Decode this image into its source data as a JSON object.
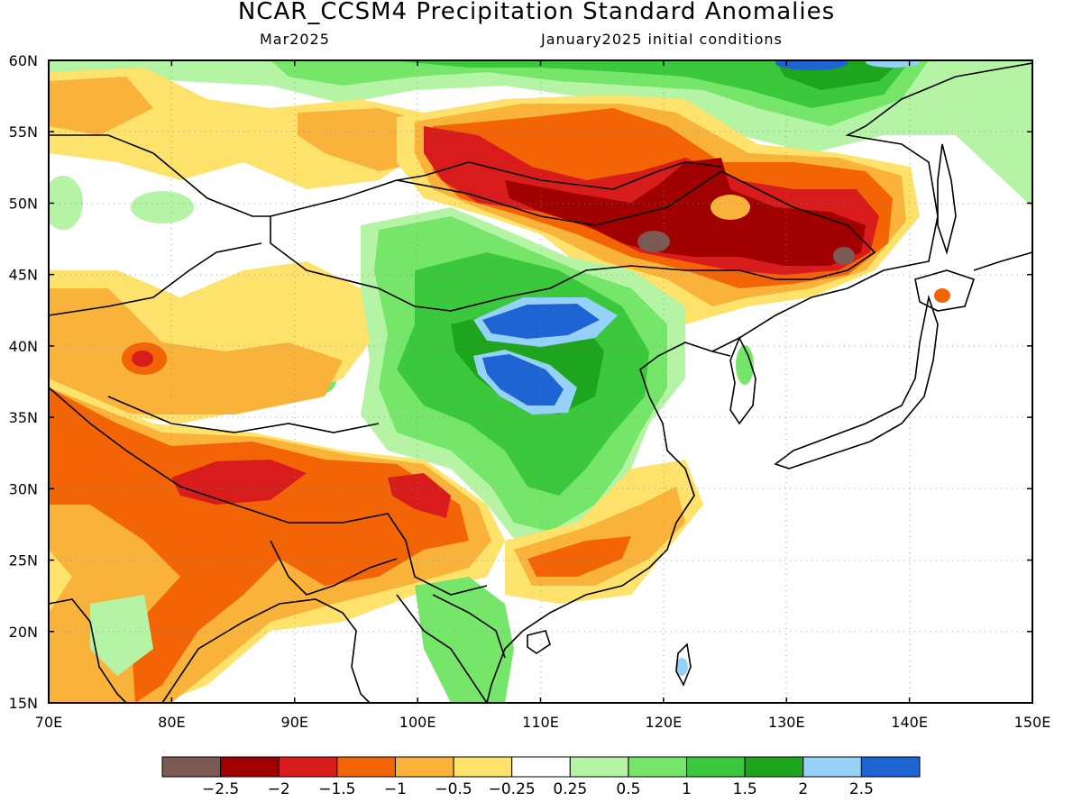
{
  "header": {
    "title": "NCAR_CCSM4 Precipitation Standard Anomalies",
    "valid_month": "Mar2025",
    "init_text": "January2025 initial conditions"
  },
  "map": {
    "lon_range": [
      70,
      150
    ],
    "lat_range": [
      15,
      60
    ],
    "lon_ticks": [
      "70E",
      "80E",
      "90E",
      "100E",
      "110E",
      "120E",
      "130E",
      "140E",
      "150E"
    ],
    "lat_ticks": [
      "15N",
      "20N",
      "25N",
      "30N",
      "35N",
      "40N",
      "45N",
      "50N",
      "55N",
      "60N"
    ],
    "region_features": [
      {
        "name": "strong-dry-mongolia-northeast-china",
        "level": "-2 to -3"
      },
      {
        "name": "dry-tibet-himalaya",
        "level": "-1.5 to -2"
      },
      {
        "name": "dry-south-china",
        "level": "-1"
      },
      {
        "name": "wet-inner-mongolia-north-china",
        "level": "1.5 to 2.5"
      },
      {
        "name": "wet-northern-edge",
        "level": "1 to 2"
      }
    ]
  },
  "colorbar": {
    "colors": [
      "#7a5a52",
      "#a00000",
      "#d81c1c",
      "#f26406",
      "#f9b23a",
      "#fde26b",
      "#ffffff",
      "#b4f4a4",
      "#76e66a",
      "#3cc83c",
      "#1ea51e",
      "#96d2f8",
      "#1e64d2"
    ],
    "labels": [
      "−2.5",
      "−2",
      "−1.5",
      "−1",
      "−0.5",
      "−0.25",
      "0.25",
      "0.5",
      "1",
      "1.5",
      "2",
      "2.5"
    ]
  }
}
